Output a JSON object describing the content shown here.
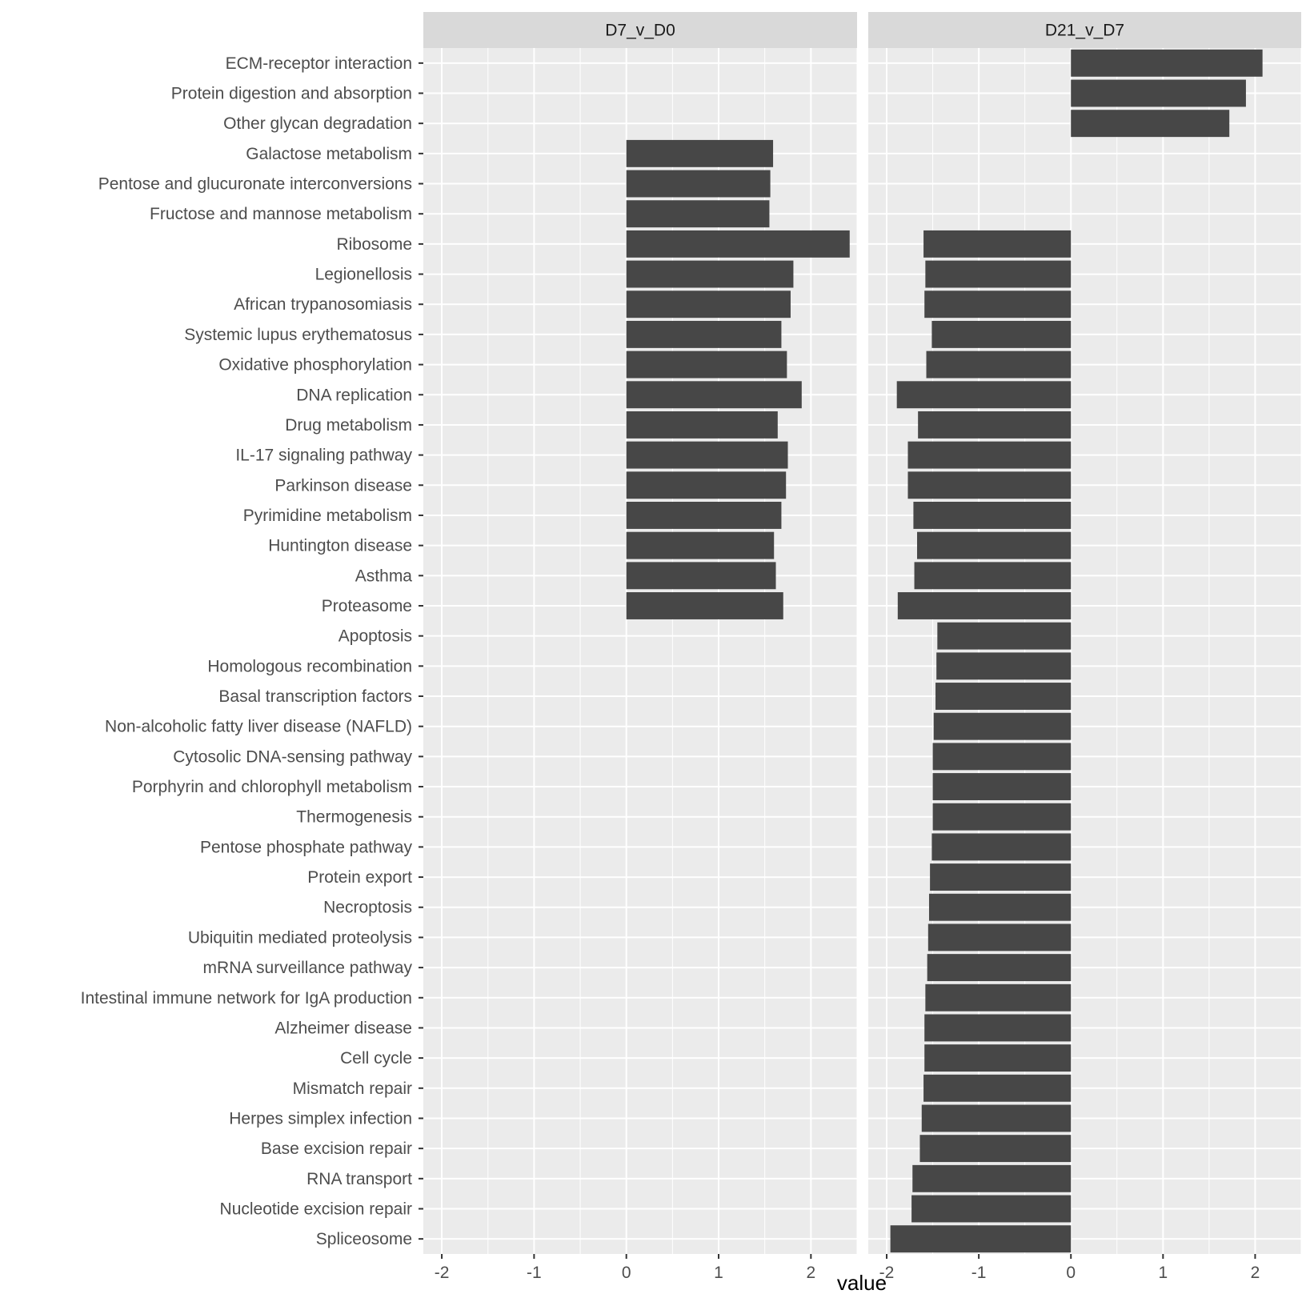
{
  "chart_data": {
    "type": "bar",
    "orientation": "horizontal",
    "xlabel": "value",
    "ylabel": "",
    "xlim": [
      -2.2,
      2.5
    ],
    "xticks": [
      -2,
      -1,
      0,
      1,
      2
    ],
    "grid": true,
    "categories": [
      "ECM-receptor interaction",
      "Protein digestion and absorption",
      "Other glycan degradation",
      "Galactose metabolism",
      "Pentose and glucuronate interconversions",
      "Fructose and mannose metabolism",
      "Ribosome",
      "Legionellosis",
      "African trypanosomiasis",
      "Systemic lupus erythematosus",
      "Oxidative phosphorylation",
      "DNA replication",
      "Drug metabolism",
      "IL-17 signaling pathway",
      "Parkinson disease",
      "Pyrimidine metabolism",
      "Huntington disease",
      "Asthma",
      "Proteasome",
      "Apoptosis",
      "Homologous recombination",
      "Basal transcription factors",
      "Non-alcoholic fatty liver disease (NAFLD)",
      "Cytosolic DNA-sensing pathway",
      "Porphyrin and chlorophyll metabolism",
      "Thermogenesis",
      "Pentose phosphate pathway",
      "Protein export",
      "Necroptosis",
      "Ubiquitin mediated proteolysis",
      "mRNA surveillance pathway",
      "Intestinal immune network for IgA production",
      "Alzheimer disease",
      "Cell cycle",
      "Mismatch repair",
      "Herpes simplex infection",
      "Base excision repair",
      "RNA transport",
      "Nucleotide excision repair",
      "Spliceosome"
    ],
    "series": [
      {
        "name": "D7_v_D0",
        "values": [
          null,
          null,
          null,
          1.59,
          1.56,
          1.55,
          2.42,
          1.81,
          1.78,
          1.68,
          1.74,
          1.9,
          1.64,
          1.75,
          1.73,
          1.68,
          1.6,
          1.62,
          1.7,
          null,
          null,
          null,
          null,
          null,
          null,
          null,
          null,
          null,
          null,
          null,
          null,
          null,
          null,
          null,
          null,
          null,
          null,
          null,
          null,
          null
        ]
      },
      {
        "name": "D21_v_D7",
        "values": [
          2.08,
          1.9,
          1.72,
          null,
          null,
          null,
          -1.6,
          -1.58,
          -1.59,
          -1.51,
          -1.57,
          -1.89,
          -1.66,
          -1.77,
          -1.77,
          -1.71,
          -1.67,
          -1.7,
          -1.88,
          -1.45,
          -1.46,
          -1.47,
          -1.49,
          -1.5,
          -1.5,
          -1.5,
          -1.51,
          -1.53,
          -1.54,
          -1.55,
          -1.56,
          -1.58,
          -1.59,
          -1.59,
          -1.6,
          -1.62,
          -1.64,
          -1.72,
          -1.73,
          -1.96
        ]
      }
    ]
  }
}
